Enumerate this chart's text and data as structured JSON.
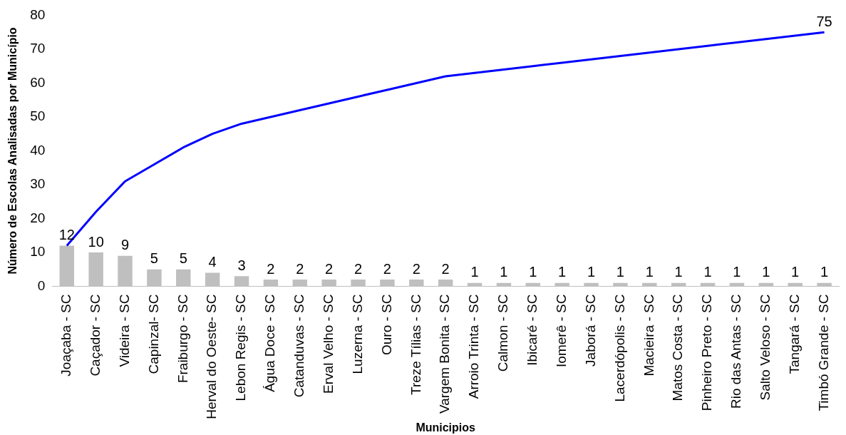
{
  "chart_data": {
    "type": "bar",
    "xlabel": "Municipios",
    "ylabel": "Número de Escolas Analisadas por Município",
    "categories": [
      "Joaçaba - SC",
      "Caçador - SC",
      "Videira - SC",
      "Capinzal- SC",
      "Fraiburgo - SC",
      "Herval do Oeste- SC",
      "Lebon Regis - SC",
      "Água Doce - SC",
      "Catanduvas - SC",
      "Erval Velho - SC",
      "Luzerna - SC",
      "Ouro - SC",
      "Treze Tílias - SC",
      "Vargem Bonita - SC",
      "Arroio Trinta - SC",
      "Calmon - SC",
      "Ibicaré - SC",
      "Iomerê - SC",
      "Jaborá - SC",
      "Lacerdópolis - SC",
      "Macieira - SC",
      "Matos Costa - SC",
      "Pinheiro Preto - SC",
      "Rio das Antas - SC",
      "Salto Veloso - SC",
      "Tangará - SC",
      "Timbó Grande - SC"
    ],
    "series": [
      {
        "color": "#bfbfbf",
        "values": [
          12,
          10,
          9,
          5,
          5,
          4,
          3,
          2,
          2,
          2,
          2,
          2,
          2,
          2,
          1,
          1,
          1,
          1,
          1,
          1,
          1,
          1,
          1,
          1,
          1,
          1,
          1
        ],
        "value_labels": [
          "12",
          "10",
          "9",
          "5",
          "5",
          "4",
          "3",
          "2",
          "2",
          "2",
          "2",
          "2",
          "2",
          "2",
          "1",
          "1",
          "1",
          "1",
          "1",
          "1",
          "1",
          "1",
          "1",
          "1",
          "1",
          "1",
          "1"
        ]
      },
      {
        "type": "line",
        "color": "#0000ff",
        "values": [
          12,
          22,
          31,
          36,
          41,
          45,
          48,
          50,
          52,
          54,
          56,
          58,
          60,
          62,
          63,
          64,
          65,
          66,
          67,
          68,
          69,
          70,
          71,
          72,
          73,
          74,
          75
        ],
        "value_labels": [
          null,
          null,
          null,
          null,
          null,
          null,
          null,
          null,
          null,
          null,
          null,
          null,
          null,
          null,
          null,
          null,
          null,
          null,
          null,
          null,
          null,
          null,
          null,
          null,
          null,
          null,
          "75"
        ]
      }
    ],
    "ylim": [
      0,
      80
    ],
    "yticks": [
      0,
      10,
      20,
      30,
      40,
      50,
      60,
      70,
      80
    ],
    "grid": false,
    "legend": false,
    "marker": "none"
  }
}
